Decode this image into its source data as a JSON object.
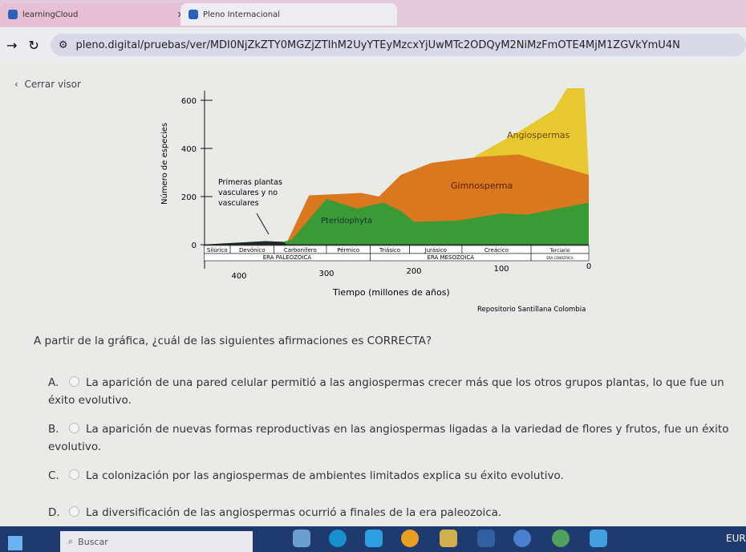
{
  "browser": {
    "tabs": [
      {
        "label": "learningCloud"
      },
      {
        "label": "Pleno Internacional"
      }
    ],
    "url": "pleno.digital/pruebas/ver/MDI0NjZkZTY0MGZjZTIhM2UyYTEyMzcxYjUwMTc2ODQyM2NiMzFmOTE4MjM1ZGVkYmU4N"
  },
  "viewer": {
    "close_label": "Cerrar visor"
  },
  "chart_data": {
    "type": "area",
    "stacked": true,
    "ylabel": "Número de especies",
    "xlabel": "Tiempo (millones de años)",
    "yticks": [
      0,
      200,
      400,
      600
    ],
    "xticks": [
      400,
      300,
      200,
      100,
      0
    ],
    "xlim": [
      450,
      0
    ],
    "ylim": [
      0,
      650
    ],
    "source": "Repositorio Santillana Colombia",
    "series": [
      {
        "name": "Primeras plantas vasculares y no vasculares",
        "color": "#1f2a2a",
        "top": [
          [
            445,
            0
          ],
          [
            370,
            15
          ],
          [
            350,
            12
          ],
          [
            345,
            0
          ]
        ]
      },
      {
        "name": "Pteridophyta",
        "color": "#3a9a36",
        "top": [
          [
            350,
            12
          ],
          [
            340,
            20
          ],
          [
            300,
            190
          ],
          [
            265,
            150
          ],
          [
            235,
            175
          ],
          [
            215,
            140
          ],
          [
            200,
            95
          ],
          [
            150,
            100
          ],
          [
            100,
            130
          ],
          [
            70,
            125
          ],
          [
            0,
            175
          ]
        ]
      },
      {
        "name": "Gimnosperma",
        "color": "#d9781e",
        "top": [
          [
            345,
            12
          ],
          [
            320,
            205
          ],
          [
            260,
            215
          ],
          [
            240,
            200
          ],
          [
            215,
            290
          ],
          [
            180,
            340
          ],
          [
            125,
            365
          ],
          [
            80,
            375
          ],
          [
            0,
            290
          ]
        ]
      },
      {
        "name": "Angiospermas",
        "color": "#e8c830",
        "top": [
          [
            130,
            368
          ],
          [
            80,
            470
          ],
          [
            40,
            560
          ],
          [
            25,
            650
          ],
          [
            5,
            650
          ],
          [
            0,
            290
          ]
        ]
      }
    ],
    "periods": [
      "Silúrico",
      "Devónico",
      "Carbonífero",
      "Pérmico",
      "Triásico",
      "Jurásico",
      "Creácico",
      "Terciario"
    ],
    "eras": [
      "ERA PALEOZOICA",
      "ERA MESOZOICA",
      "ERA CENOZOICA"
    ]
  },
  "question": {
    "prompt": "A partir de la gráfica, ¿cuál de las siguientes afirmaciones es CORRECTA?",
    "options": [
      {
        "letter": "A.",
        "text": "La aparición de una pared celular permitió a las angiospermas crecer más que los otros grupos plantas, lo que fue un éxito evolutivo."
      },
      {
        "letter": "B.",
        "text": "La aparición de nuevas formas reproductivas en las angiospermas ligadas a la variedad de flores y frutos, fue un éxito evolutivo."
      },
      {
        "letter": "C.",
        "text": "La colonización por las angiospermas de ambientes limitados explica su éxito evolutivo."
      },
      {
        "letter": "D.",
        "text": "La diversificación de las angiospermas ocurrió a finales de la era paleozoica."
      }
    ]
  },
  "taskbar": {
    "search_placeholder": "Buscar",
    "tray_text": "EUR"
  }
}
